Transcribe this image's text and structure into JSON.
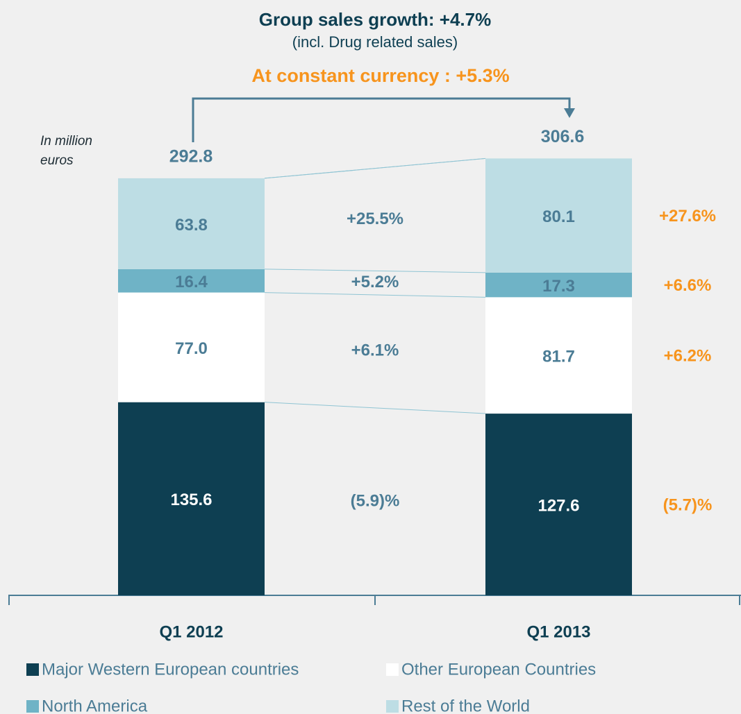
{
  "chart_data": {
    "type": "bar",
    "stacked": true,
    "title": "Group sales growth: +4.7%",
    "subtitle": "(incl. Drug related sales)",
    "annotation": "At constant currency : +5.3%",
    "unit_label": "In million euros",
    "categories": [
      "Q1 2012",
      "Q1 2013"
    ],
    "totals": [
      292.8,
      306.6
    ],
    "ylim": [
      0,
      350
    ],
    "series": [
      {
        "name": "Major Western European countries",
        "color": "#0e3f52",
        "values": [
          135.6,
          127.6
        ],
        "growth": "(5.9)%",
        "growth_constant_currency": "(5.7)%"
      },
      {
        "name": "Other European Countries",
        "color": "#ffffff",
        "values": [
          77,
          81.7
        ],
        "value_labels": [
          "77.0",
          "81.7"
        ],
        "growth": "+6.1%",
        "growth_constant_currency": "+6.2%"
      },
      {
        "name": "North America",
        "color": "#6fb3c6",
        "values": [
          16.4,
          17.3
        ],
        "growth": "+5.2%",
        "growth_constant_currency": "+6.6%"
      },
      {
        "name": "Rest of the World",
        "color": "#bddde4",
        "values": [
          63.8,
          80.1
        ],
        "growth": "+25.5%",
        "growth_constant_currency": "+27.6%"
      }
    ]
  }
}
